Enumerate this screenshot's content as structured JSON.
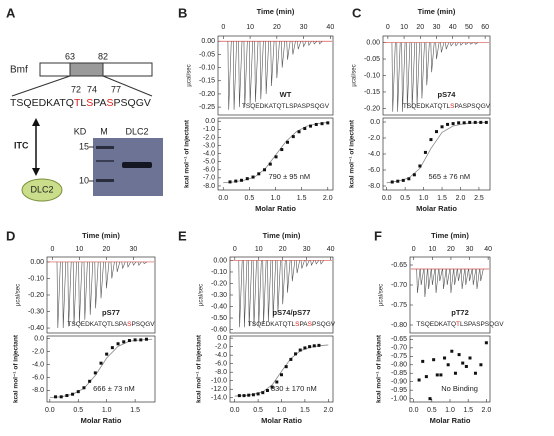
{
  "diagram": {
    "letter": "A",
    "protein": "Bmf",
    "start": 63,
    "end": 82,
    "sequence": [
      {
        "text": "TSQEDKATQ",
        "color": "#222222"
      },
      {
        "text": "T",
        "color": "#e0201b"
      },
      {
        "text": "L",
        "color": "#222222"
      },
      {
        "text": "S",
        "color": "#e0201b"
      },
      {
        "text": "PA",
        "color": "#222222"
      },
      {
        "text": "S",
        "color": "#e0201b"
      },
      {
        "text": "PSQGV",
        "color": "#222222"
      }
    ],
    "sites": [
      72,
      74,
      77
    ],
    "method": "ITC",
    "partner": "DLC2",
    "gel": {
      "kd_label": "KD",
      "lanes": [
        "M",
        "DLC2"
      ],
      "markers": [
        15,
        10
      ]
    }
  },
  "chart_data": [
    {
      "type": "itc",
      "letter": "B",
      "label": "WT",
      "affinity": "790 ± 95 nM",
      "sequence": [
        {
          "text": "TSQEDKATQTLSPASPSQGV",
          "color": "#222222"
        }
      ],
      "thermogram": {
        "x_label": "Time (min)",
        "y_label": "µcal/sec",
        "color": "#555555",
        "baseline": 0,
        "baseline_color": "#d9534f",
        "xlim": [
          -2,
          41
        ],
        "xticks": [
          0,
          10,
          20,
          30,
          40
        ],
        "ylim": [
          -0.28,
          0.02
        ],
        "yticks": [
          {
            "value": 0,
            "label": "0.00"
          },
          -0.05,
          {
            "value": -0.1,
            "label": "-0.10"
          },
          -0.15,
          {
            "value": -0.2,
            "label": "-0.20"
          },
          -0.25
        ],
        "x": [
          2,
          4,
          6,
          8,
          10,
          12,
          14,
          16,
          18,
          20,
          22,
          24,
          26,
          28,
          30,
          32,
          34,
          36
        ],
        "values": [
          -0.26,
          -0.26,
          -0.25,
          -0.25,
          -0.24,
          -0.23,
          -0.22,
          -0.2,
          -0.17,
          -0.14,
          -0.1,
          -0.07,
          -0.05,
          -0.03,
          -0.02,
          -0.015,
          -0.01,
          -0.01
        ]
      },
      "isotherm": {
        "x_label": "Molar Ratio",
        "y_label": "kcal mol⁻¹ of injectant",
        "color": "#111111",
        "fit_color": "#888888",
        "xlim": [
          -0.1,
          2.1
        ],
        "xticks": [
          {
            "value": 0,
            "label": "0.0"
          },
          0.5,
          {
            "value": 1,
            "label": "1.0"
          },
          1.5,
          {
            "value": 2,
            "label": "2.0"
          }
        ],
        "ylim": [
          -8.5,
          0.4
        ],
        "yticks": [
          {
            "value": 0,
            "label": "0.0"
          },
          {
            "value": -1,
            "label": "-1.0"
          },
          {
            "value": -2,
            "label": "-2.0"
          },
          {
            "value": -3,
            "label": "-3.0"
          },
          {
            "value": -4,
            "label": "-4.0"
          },
          {
            "value": -5,
            "label": "-5.0"
          },
          {
            "value": -6,
            "label": "-6.0"
          },
          {
            "value": -7,
            "label": "-7.0"
          },
          {
            "value": -8,
            "label": "-8.0"
          }
        ],
        "x": [
          0.13,
          0.24,
          0.35,
          0.46,
          0.57,
          0.68,
          0.79,
          0.9,
          1.01,
          1.12,
          1.23,
          1.34,
          1.45,
          1.56,
          1.67,
          1.78,
          1.89,
          2.0
        ],
        "values": [
          -7.5,
          -7.4,
          -7.3,
          -7.1,
          -6.9,
          -6.5,
          -6.0,
          -5.3,
          -4.4,
          -3.5,
          -2.6,
          -1.9,
          -1.3,
          -0.9,
          -0.6,
          -0.4,
          -0.3,
          -0.2
        ],
        "fit_x": [
          0,
          0.2,
          0.4,
          0.6,
          0.8,
          1.0,
          1.2,
          1.4,
          1.6,
          1.8,
          2.0
        ],
        "fit_values": [
          -7.6,
          -7.5,
          -7.3,
          -6.9,
          -5.9,
          -4.2,
          -2.5,
          -1.3,
          -0.6,
          -0.3,
          -0.15
        ]
      }
    },
    {
      "type": "itc",
      "letter": "C",
      "label": "pS74",
      "affinity": "565 ± 76 nM",
      "sequence": [
        {
          "text": "TSQEDKATQTL",
          "color": "#222222"
        },
        {
          "text": "S",
          "color": "#e0201b"
        },
        {
          "text": "PASPSQGV",
          "color": "#222222"
        }
      ],
      "thermogram": {
        "x_label": "Time (min)",
        "y_label": "µcal/sec",
        "color": "#555555",
        "baseline": 0,
        "baseline_color": "#d9534f",
        "xlim": [
          -3,
          63
        ],
        "xticks": [
          0,
          10,
          20,
          30,
          40,
          50,
          60
        ],
        "ylim": [
          -0.22,
          0.02
        ],
        "yticks": [
          {
            "value": 0,
            "label": "0.00"
          },
          -0.05,
          {
            "value": -0.1,
            "label": "-0.10"
          },
          -0.15,
          {
            "value": -0.2,
            "label": "-0.20"
          }
        ],
        "x": [
          3,
          6,
          9,
          12,
          15,
          18,
          21,
          24,
          27,
          30,
          33,
          36,
          39,
          42,
          45,
          48,
          51,
          54
        ],
        "values": [
          -0.21,
          -0.21,
          -0.21,
          -0.2,
          -0.2,
          -0.19,
          -0.17,
          -0.13,
          -0.09,
          -0.05,
          -0.03,
          -0.02,
          -0.01,
          -0.01,
          -0.008,
          -0.006,
          -0.005,
          -0.005
        ]
      },
      "isotherm": {
        "x_label": "Molar Ratio",
        "y_label": "kcal mol⁻¹ of injectant",
        "color": "#111111",
        "fit_color": "#888888",
        "xlim": [
          -0.1,
          2.8
        ],
        "xticks": [
          {
            "value": 0,
            "label": "0.0"
          },
          0.5,
          {
            "value": 1,
            "label": "1.0"
          },
          1.5,
          {
            "value": 2,
            "label": "2.0"
          },
          2.5
        ],
        "ylim": [
          -8.5,
          0.5
        ],
        "yticks": [
          {
            "value": 0,
            "label": "0.0"
          },
          {
            "value": -2,
            "label": "-2.0"
          },
          {
            "value": -4,
            "label": "-4.0"
          },
          {
            "value": -6,
            "label": "-6.0"
          },
          {
            "value": -8,
            "label": "-8.0"
          }
        ],
        "x": [
          0.15,
          0.3,
          0.45,
          0.6,
          0.75,
          0.9,
          1.05,
          1.2,
          1.35,
          1.5,
          1.65,
          1.8,
          1.95,
          2.1,
          2.25,
          2.4,
          2.55,
          2.7
        ],
        "values": [
          -7.5,
          -7.4,
          -7.3,
          -7.1,
          -6.6,
          -5.5,
          -3.8,
          -2.2,
          -1.2,
          -0.6,
          -0.3,
          -0.2,
          -0.1,
          -0.1,
          -0.05,
          -0.05,
          -0.05,
          -0.05
        ],
        "fit_x": [
          0,
          0.3,
          0.6,
          0.9,
          1.2,
          1.5,
          1.8,
          2.1,
          2.4,
          2.7
        ],
        "fit_values": [
          -7.6,
          -7.4,
          -7.0,
          -5.8,
          -3.3,
          -1.3,
          -0.5,
          -0.2,
          -0.1,
          -0.05
        ]
      }
    },
    {
      "type": "itc",
      "letter": "D",
      "label": "pS77",
      "affinity": "666 ± 73 nM",
      "sequence": [
        {
          "text": "TSQEDKATQTLSPA",
          "color": "#222222"
        },
        {
          "text": "S",
          "color": "#e0201b"
        },
        {
          "text": "PSQGV",
          "color": "#222222"
        }
      ],
      "thermogram": {
        "x_label": "Time (min)",
        "y_label": "µcal/sec",
        "color": "#555555",
        "baseline": 0,
        "baseline_color": "#d9534f",
        "xlim": [
          -2,
          38
        ],
        "xticks": [
          0,
          10,
          20,
          30
        ],
        "ylim": [
          -0.43,
          0.03
        ],
        "yticks": [
          {
            "value": 0,
            "label": "0.00"
          },
          {
            "value": -0.1,
            "label": "-0.10"
          },
          {
            "value": -0.2,
            "label": "-0.20"
          },
          {
            "value": -0.3,
            "label": "-0.30"
          },
          {
            "value": -0.4,
            "label": "-0.40"
          }
        ],
        "x": [
          2,
          4,
          6,
          8,
          10,
          12,
          14,
          16,
          18,
          20,
          22,
          24,
          26,
          28,
          30,
          32,
          34
        ],
        "values": [
          -0.4,
          -0.4,
          -0.39,
          -0.38,
          -0.37,
          -0.35,
          -0.32,
          -0.28,
          -0.22,
          -0.16,
          -0.1,
          -0.06,
          -0.04,
          -0.03,
          -0.02,
          -0.02,
          -0.01
        ]
      },
      "isotherm": {
        "x_label": "Molar Ratio",
        "y_label": "kcal mol⁻¹ of injectant",
        "color": "#111111",
        "fit_color": "#888888",
        "xlim": [
          -0.05,
          1.85
        ],
        "xticks": [
          {
            "value": 0,
            "label": "0.0"
          },
          0.5,
          {
            "value": 1,
            "label": "1.0"
          },
          1.5
        ],
        "ylim": [
          -9.8,
          0.4
        ],
        "yticks": [
          {
            "value": 0,
            "label": "0.0"
          },
          {
            "value": -2,
            "label": "-2.0"
          },
          {
            "value": -4,
            "label": "-4.0"
          },
          {
            "value": -6,
            "label": "-6.0"
          },
          {
            "value": -8,
            "label": "-8.0"
          }
        ],
        "x": [
          0.1,
          0.2,
          0.3,
          0.4,
          0.5,
          0.6,
          0.7,
          0.8,
          0.9,
          1.0,
          1.1,
          1.2,
          1.3,
          1.4,
          1.5,
          1.6,
          1.7
        ],
        "values": [
          -9.0,
          -9.0,
          -8.8,
          -8.6,
          -8.2,
          -7.6,
          -6.6,
          -5.3,
          -3.8,
          -2.4,
          -1.4,
          -0.8,
          -0.5,
          -0.3,
          -0.2,
          -0.2,
          -0.1
        ],
        "fit_x": [
          0,
          0.2,
          0.4,
          0.6,
          0.8,
          1.0,
          1.2,
          1.4,
          1.6,
          1.8
        ],
        "fit_values": [
          -9.1,
          -9.0,
          -8.6,
          -7.7,
          -5.7,
          -3.0,
          -1.2,
          -0.4,
          -0.2,
          -0.1
        ]
      }
    },
    {
      "type": "itc",
      "letter": "E",
      "label": "pS74/pS77",
      "affinity": "830 ± 170 nM",
      "sequence": [
        {
          "text": "TSQEDKATQTL",
          "color": "#222222"
        },
        {
          "text": "S",
          "color": "#e0201b"
        },
        {
          "text": "PA",
          "color": "#222222"
        },
        {
          "text": "S",
          "color": "#e0201b"
        },
        {
          "text": "PSQGV",
          "color": "#222222"
        }
      ],
      "thermogram": {
        "x_label": "Time (min)",
        "y_label": "µcal/sec",
        "color": "#555555",
        "baseline": 0,
        "baseline_color": "#d9534f",
        "xlim": [
          -2,
          41
        ],
        "xticks": [
          0,
          10,
          20,
          30,
          40
        ],
        "ylim": [
          -0.63,
          0.03
        ],
        "yticks": [
          {
            "value": 0,
            "label": "0.00"
          },
          {
            "value": -0.1,
            "label": "-0.10"
          },
          {
            "value": -0.2,
            "label": "-0.20"
          },
          {
            "value": -0.3,
            "label": "-0.30"
          },
          {
            "value": -0.4,
            "label": "-0.40"
          },
          {
            "value": -0.5,
            "label": "-0.50"
          },
          {
            "value": -0.6,
            "label": "-0.60"
          }
        ],
        "x": [
          2,
          4,
          6,
          8,
          10,
          12,
          14,
          16,
          18,
          20,
          22,
          24,
          26,
          28,
          30,
          32,
          34,
          36
        ],
        "values": [
          -0.58,
          -0.58,
          -0.57,
          -0.57,
          -0.56,
          -0.55,
          -0.53,
          -0.5,
          -0.45,
          -0.38,
          -0.28,
          -0.18,
          -0.11,
          -0.07,
          -0.05,
          -0.04,
          -0.03,
          -0.03
        ]
      },
      "isotherm": {
        "x_label": "Molar Ratio",
        "y_label": "kcal mol⁻¹ of injectant",
        "color": "#111111",
        "fit_color": "#888888",
        "xlim": [
          -0.1,
          2.1
        ],
        "xticks": [
          {
            "value": 0,
            "label": "0.0"
          },
          0.5,
          {
            "value": 1,
            "label": "1.0"
          },
          1.5,
          {
            "value": 2,
            "label": "2.0"
          }
        ],
        "ylim": [
          -15,
          0.5
        ],
        "yticks": [
          {
            "value": 0,
            "label": "0.0"
          },
          {
            "value": -2,
            "label": "-2.0"
          },
          {
            "value": -4,
            "label": "-4.0"
          },
          {
            "value": -6,
            "label": "-6.0"
          },
          {
            "value": -8,
            "label": "-8.0"
          },
          {
            "value": -10,
            "label": "-10.0"
          },
          {
            "value": -12,
            "label": "-12.0"
          },
          {
            "value": -14,
            "label": "-14.0"
          }
        ],
        "x": [
          0.1,
          0.2,
          0.3,
          0.4,
          0.5,
          0.6,
          0.7,
          0.8,
          0.9,
          1.0,
          1.1,
          1.2,
          1.3,
          1.4,
          1.5,
          1.6,
          1.7,
          1.8
        ],
        "values": [
          -13.5,
          -13.5,
          -13.4,
          -13.3,
          -13.1,
          -12.8,
          -12.3,
          -11.5,
          -10.3,
          -8.6,
          -6.7,
          -5.0,
          -3.7,
          -2.8,
          -2.3,
          -2.0,
          -1.8,
          -1.7
        ],
        "fit_x": [
          0,
          0.2,
          0.4,
          0.6,
          0.8,
          1.0,
          1.2,
          1.4,
          1.6,
          1.8,
          2.0
        ],
        "fit_values": [
          -13.6,
          -13.5,
          -13.2,
          -12.6,
          -11.0,
          -7.8,
          -4.8,
          -3.0,
          -2.2,
          -1.8,
          -1.6
        ]
      }
    },
    {
      "type": "itc",
      "letter": "F",
      "label": "pT72",
      "affinity": "No Binding",
      "sequence": [
        {
          "text": "TSQEDKATQ",
          "color": "#222222"
        },
        {
          "text": "T",
          "color": "#e0201b"
        },
        {
          "text": "LSPASPSQGV",
          "color": "#222222"
        }
      ],
      "thermogram": {
        "x_label": "Time (min)",
        "y_label": "µcal/sec",
        "color": "#555555",
        "baseline": -0.66,
        "baseline_color": "#d9534f",
        "xlim": [
          -2,
          41
        ],
        "xticks": [
          0,
          10,
          20,
          30,
          40
        ],
        "ylim": [
          -0.82,
          -0.63
        ],
        "yticks": [
          -0.65,
          {
            "value": -0.7,
            "label": "-0.70"
          },
          -0.75,
          {
            "value": -0.8,
            "label": "-0.80"
          }
        ],
        "x": [
          2,
          4,
          6,
          8,
          10,
          12,
          14,
          16,
          18,
          20,
          22,
          24,
          26,
          28,
          30,
          32,
          34,
          36
        ],
        "values": [
          -0.72,
          -0.7,
          -0.73,
          -0.71,
          -0.7,
          -0.72,
          -0.69,
          -0.71,
          -0.7,
          -0.72,
          -0.7,
          -0.69,
          -0.71,
          -0.7,
          -0.69,
          -0.7,
          -0.71,
          -0.69
        ]
      },
      "isotherm": {
        "x_label": "Molar Ratio",
        "y_label": "kcal mol⁻¹ of injectant",
        "color": "#111111",
        "fit_color": "#888888",
        "xlim": [
          -0.1,
          2.1
        ],
        "xticks": [
          {
            "value": 0,
            "label": "0.0"
          },
          0.5,
          {
            "value": 1,
            "label": "1.0"
          },
          1.5,
          {
            "value": 2,
            "label": "2.0"
          }
        ],
        "ylim": [
          -1.02,
          -0.63
        ],
        "yticks": [
          -0.65,
          {
            "value": -0.7,
            "label": "-0.70"
          },
          -0.75,
          {
            "value": -0.8,
            "label": "-0.80"
          },
          -0.85,
          {
            "value": -0.9,
            "label": "-0.90"
          },
          -0.95,
          {
            "value": -1,
            "label": "-1.00"
          }
        ],
        "x": [
          0.15,
          0.25,
          0.35,
          0.45,
          0.55,
          0.65,
          0.75,
          0.85,
          0.95,
          1.05,
          1.15,
          1.25,
          1.35,
          1.45,
          1.55,
          1.7,
          1.85,
          2.0
        ],
        "values": [
          -0.89,
          -0.78,
          -0.87,
          -1.0,
          -0.77,
          -0.86,
          -0.86,
          -0.76,
          -0.8,
          -0.72,
          -0.85,
          -0.74,
          -0.79,
          -0.81,
          -0.76,
          -0.85,
          -0.8,
          -0.67
        ]
      }
    }
  ]
}
